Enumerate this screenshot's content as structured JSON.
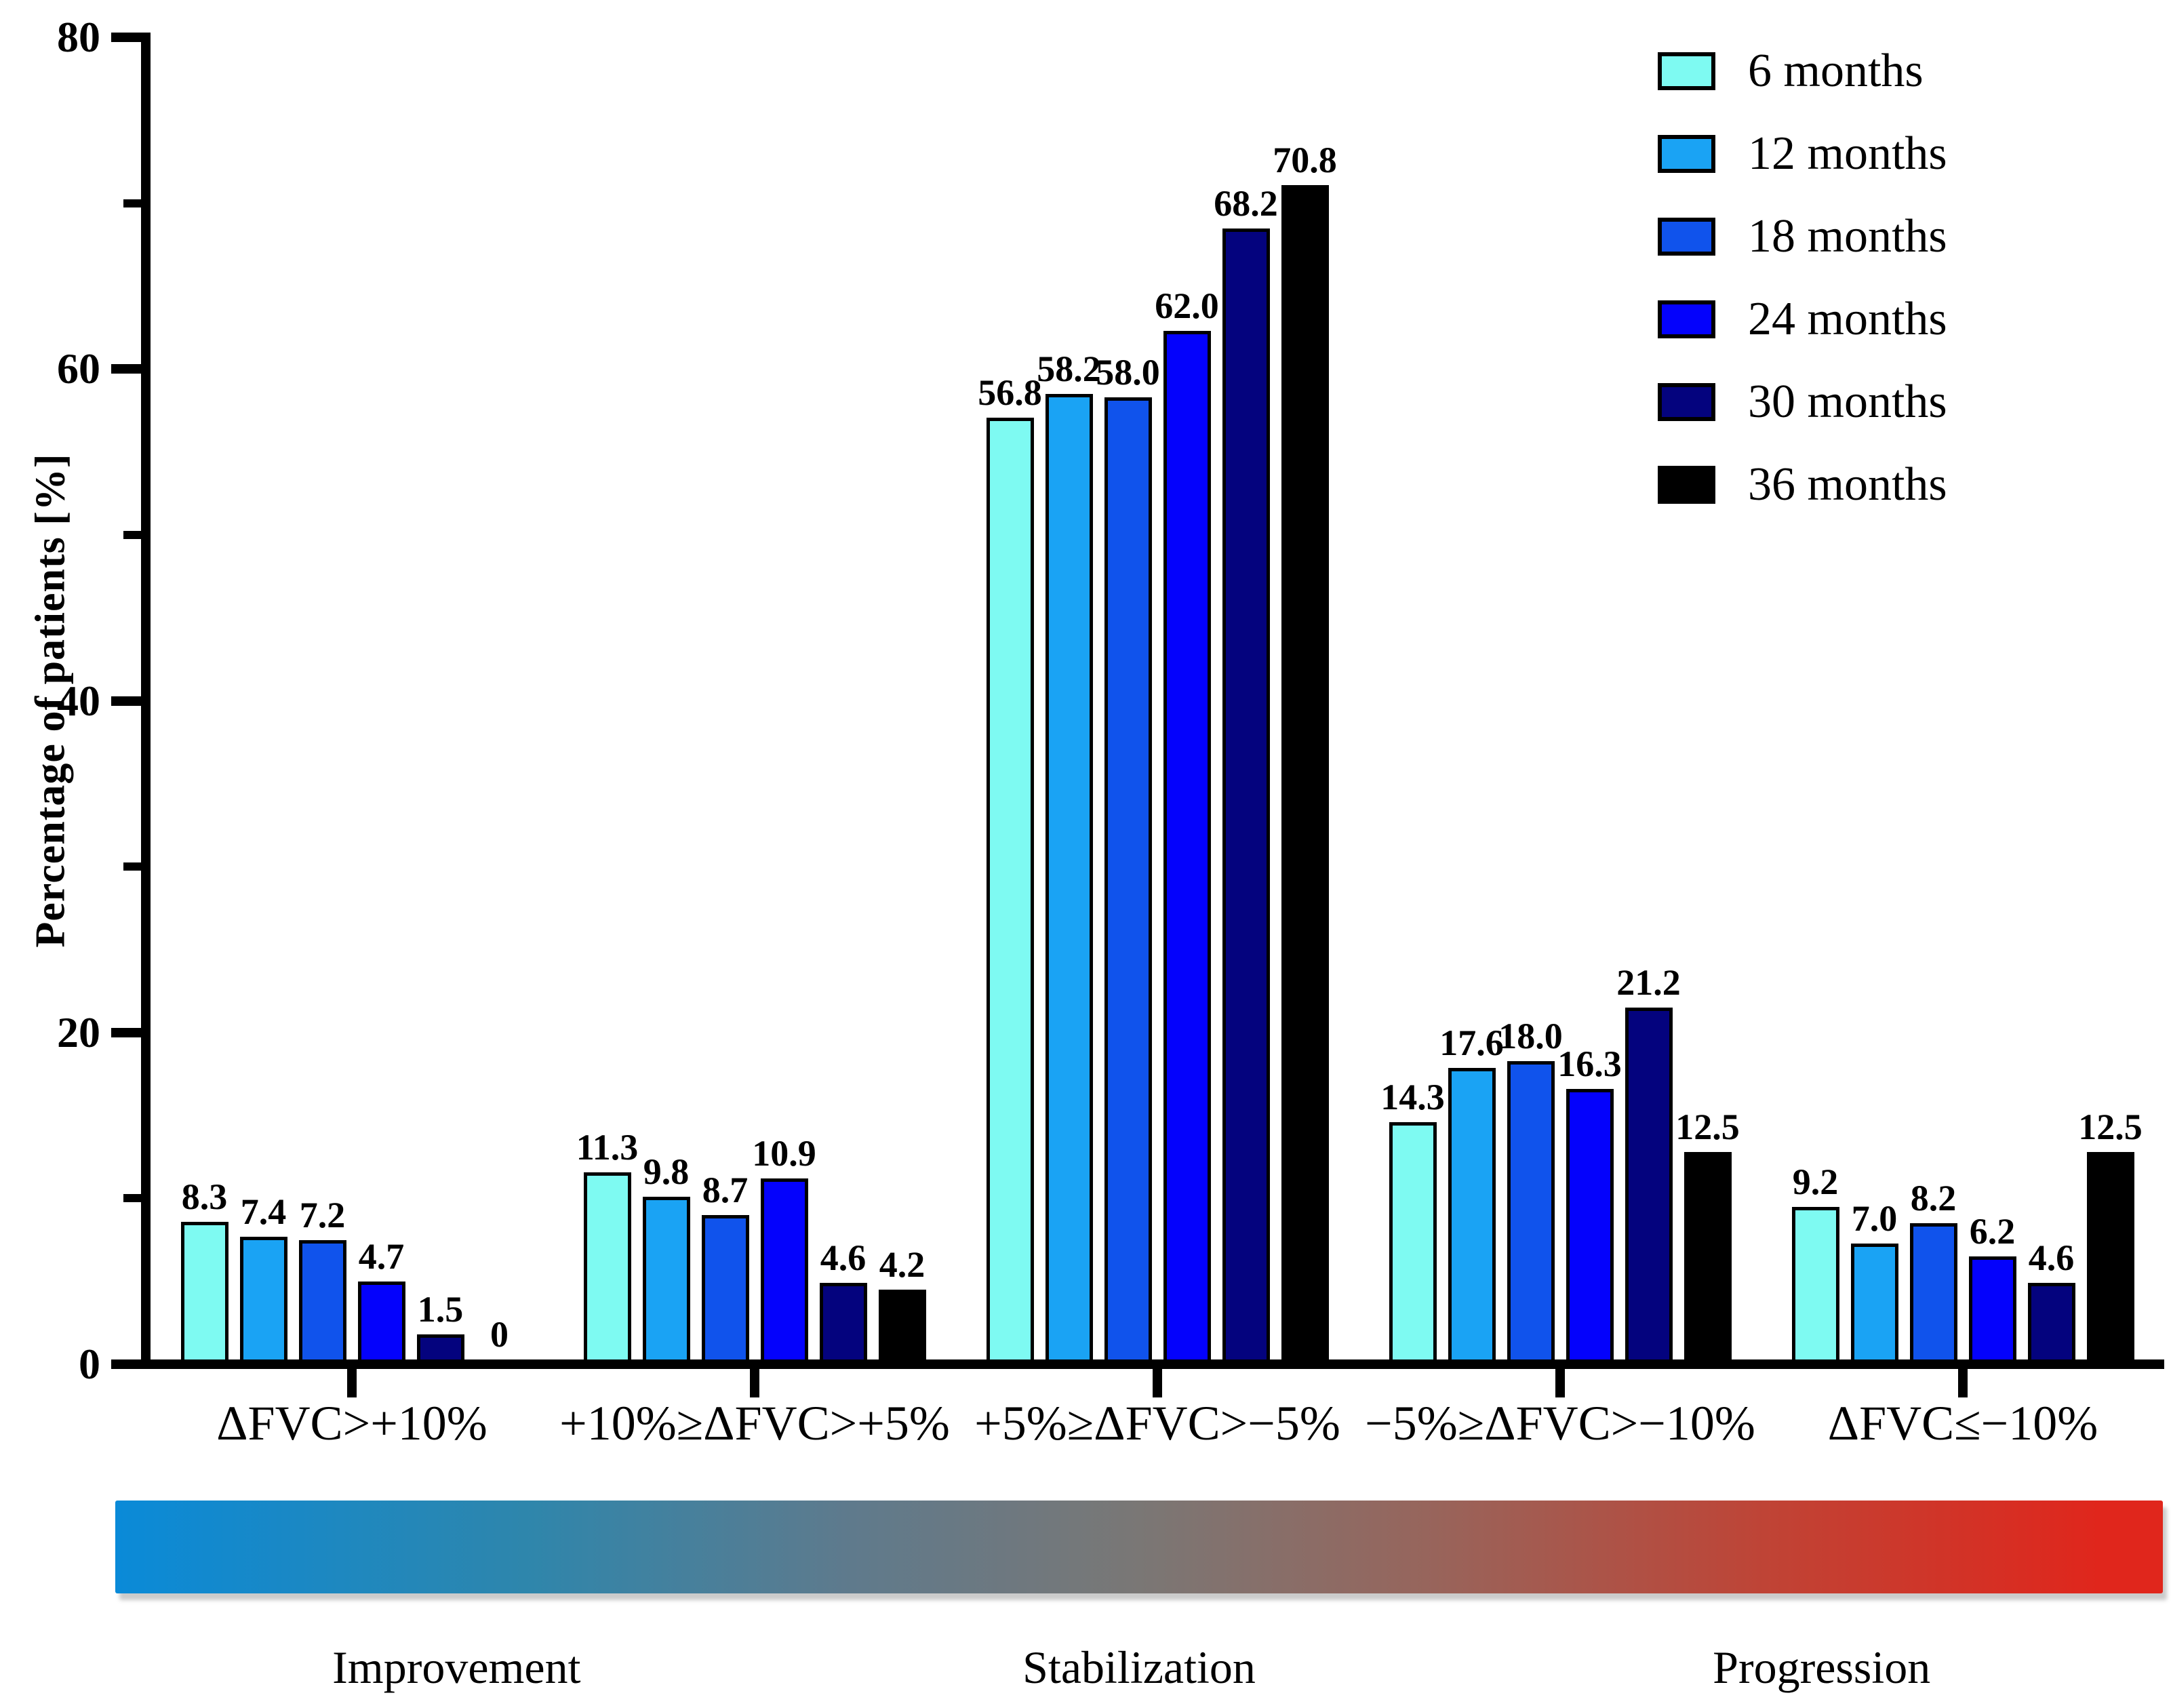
{
  "chart_data": {
    "type": "bar",
    "title": "",
    "ylabel": "Percentage of patients [%]",
    "ylim": [
      0,
      80
    ],
    "yticks_major": [
      0,
      20,
      40,
      60,
      80
    ],
    "yticks_minor": [
      10,
      30,
      50,
      70
    ],
    "grid": false,
    "legend_position": "top-right",
    "categories": [
      "ΔFVC>+10%",
      "+10%≥ΔFVC>+5%",
      "+5%≥ΔFVC>−5%",
      "−5%≥ΔFVC>−10%",
      "ΔFVC≤−10%"
    ],
    "series": [
      {
        "name": "6 months",
        "color": "#7EFAF2",
        "values": [
          8.3,
          11.3,
          56.8,
          14.3,
          9.2
        ]
      },
      {
        "name": "12 months",
        "color": "#1AA3F4",
        "values": [
          7.4,
          9.8,
          58.2,
          17.6,
          7.0
        ]
      },
      {
        "name": "18 months",
        "color": "#1053EC",
        "values": [
          7.2,
          8.7,
          58.0,
          18.0,
          8.2
        ]
      },
      {
        "name": "24 months",
        "color": "#0402FC",
        "values": [
          4.7,
          10.9,
          62.0,
          16.3,
          6.2
        ]
      },
      {
        "name": "30 months",
        "color": "#04037E",
        "values": [
          1.5,
          4.6,
          68.2,
          21.2,
          4.6
        ]
      },
      {
        "name": "36 months",
        "color": "#000000",
        "values": [
          0,
          4.2,
          70.8,
          12.5,
          12.5
        ]
      }
    ]
  },
  "zones": {
    "labels": [
      "Improvement",
      "Stabilization",
      "Progression"
    ],
    "gradient": {
      "left": "#0A8AD8",
      "middle": "#7A7775",
      "right": "#E0261C"
    }
  }
}
